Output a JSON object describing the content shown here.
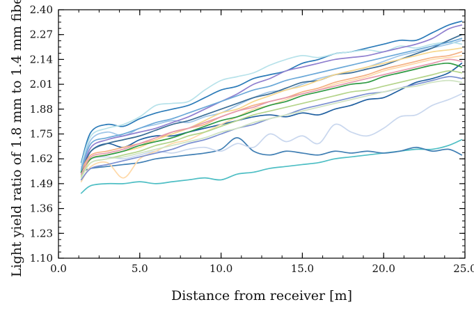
{
  "chart_data": {
    "type": "line",
    "title": "",
    "xlabel": "Distance from receiver [m]",
    "ylabel": "Light yield ratio of 1.8 mm to 1.4 mm fiber",
    "xlim": [
      0,
      25
    ],
    "ylim": [
      1.1,
      2.4
    ],
    "xticks": [
      "0.0",
      "5.0",
      "10.0",
      "15.0",
      "20.0",
      "25.0"
    ],
    "yticks": [
      "1.10",
      "1.23",
      "1.36",
      "1.49",
      "1.62",
      "1.75",
      "1.88",
      "2.01",
      "2.14",
      "2.27",
      "2.40"
    ],
    "grid": false,
    "legend": "none",
    "x": [
      1.4,
      2,
      3,
      4,
      5,
      6,
      7,
      8,
      9,
      10,
      11,
      12,
      13,
      14,
      15,
      16,
      17,
      18,
      19,
      20,
      21,
      22,
      23,
      24,
      24.8
    ],
    "series": [
      {
        "color": "#4dbec4",
        "values": [
          1.44,
          1.48,
          1.49,
          1.49,
          1.5,
          1.49,
          1.5,
          1.51,
          1.52,
          1.51,
          1.54,
          1.55,
          1.57,
          1.58,
          1.59,
          1.6,
          1.62,
          1.63,
          1.64,
          1.65,
          1.66,
          1.67,
          1.67,
          1.69,
          1.72
        ]
      },
      {
        "color": "#3f7eb3",
        "values": [
          1.55,
          1.57,
          1.58,
          1.59,
          1.6,
          1.62,
          1.63,
          1.64,
          1.65,
          1.67,
          1.73,
          1.66,
          1.64,
          1.66,
          1.65,
          1.64,
          1.66,
          1.65,
          1.66,
          1.65,
          1.66,
          1.68,
          1.66,
          1.67,
          1.64
        ]
      },
      {
        "color": "#c9d7ee",
        "values": [
          1.58,
          1.62,
          1.63,
          1.62,
          1.64,
          1.66,
          1.65,
          1.67,
          1.68,
          1.66,
          1.7,
          1.68,
          1.75,
          1.71,
          1.74,
          1.7,
          1.8,
          1.76,
          1.74,
          1.78,
          1.84,
          1.85,
          1.9,
          1.93,
          1.96
        ]
      },
      {
        "color": "#1f5fa0",
        "values": [
          1.55,
          1.66,
          1.7,
          1.68,
          1.72,
          1.74,
          1.74,
          1.76,
          1.78,
          1.8,
          1.82,
          1.84,
          1.85,
          1.84,
          1.86,
          1.85,
          1.88,
          1.9,
          1.93,
          1.94,
          1.98,
          2.02,
          2.04,
          2.07,
          2.12
        ]
      },
      {
        "color": "#9ec5e8",
        "values": [
          1.57,
          1.72,
          1.76,
          1.74,
          1.78,
          1.8,
          1.82,
          1.81,
          1.84,
          1.86,
          1.9,
          1.94,
          1.97,
          1.98,
          2.01,
          2.04,
          2.06,
          2.08,
          2.1,
          2.13,
          2.16,
          2.18,
          2.2,
          2.22,
          2.24
        ]
      },
      {
        "color": "#2a7ab8",
        "values": [
          1.6,
          1.76,
          1.8,
          1.79,
          1.83,
          1.86,
          1.88,
          1.9,
          1.94,
          1.98,
          2.0,
          2.04,
          2.06,
          2.08,
          2.12,
          2.14,
          2.17,
          2.18,
          2.2,
          2.22,
          2.24,
          2.24,
          2.28,
          2.32,
          2.34
        ]
      },
      {
        "color": "#b7e2ea",
        "values": [
          1.59,
          1.74,
          1.78,
          1.8,
          1.84,
          1.9,
          1.91,
          1.92,
          1.98,
          2.03,
          2.05,
          2.07,
          2.11,
          2.14,
          2.16,
          2.15,
          2.17,
          2.18,
          2.19,
          2.18,
          2.21,
          2.2,
          2.22,
          2.23,
          2.22
        ]
      },
      {
        "color": "#8f7fcf",
        "values": [
          1.54,
          1.68,
          1.72,
          1.74,
          1.76,
          1.78,
          1.81,
          1.84,
          1.88,
          1.92,
          1.96,
          2.01,
          2.04,
          2.08,
          2.1,
          2.12,
          2.14,
          2.15,
          2.16,
          2.18,
          2.2,
          2.22,
          2.25,
          2.3,
          2.32
        ]
      },
      {
        "color": "#3b6e96",
        "values": [
          1.55,
          1.66,
          1.7,
          1.72,
          1.74,
          1.77,
          1.8,
          1.82,
          1.85,
          1.88,
          1.91,
          1.94,
          1.96,
          1.99,
          2.02,
          2.03,
          2.06,
          2.07,
          2.09,
          2.11,
          2.14,
          2.17,
          2.2,
          2.24,
          2.27
        ]
      },
      {
        "color": "#f4b183",
        "values": [
          1.56,
          1.64,
          1.66,
          1.68,
          1.7,
          1.72,
          1.76,
          1.78,
          1.8,
          1.84,
          1.87,
          1.9,
          1.92,
          1.94,
          1.97,
          1.99,
          2.02,
          2.04,
          2.06,
          2.09,
          2.11,
          2.13,
          2.15,
          2.16,
          2.18
        ]
      },
      {
        "color": "#f6d68a",
        "values": [
          1.52,
          1.62,
          1.64,
          1.66,
          1.68,
          1.72,
          1.75,
          1.78,
          1.82,
          1.86,
          1.88,
          1.92,
          1.95,
          1.98,
          2.0,
          2.03,
          2.06,
          2.08,
          2.1,
          2.12,
          2.14,
          2.16,
          2.18,
          2.19,
          2.2
        ]
      },
      {
        "color": "#ffd9a8",
        "values": [
          1.5,
          1.58,
          1.6,
          1.52,
          1.62,
          1.66,
          1.7,
          1.72,
          1.76,
          1.8,
          1.84,
          1.88,
          1.9,
          1.93,
          1.96,
          1.98,
          2.01,
          2.03,
          2.05,
          2.08,
          2.1,
          2.12,
          2.14,
          2.15,
          2.16
        ]
      },
      {
        "color": "#2f9a44",
        "values": [
          1.55,
          1.62,
          1.64,
          1.66,
          1.69,
          1.71,
          1.73,
          1.76,
          1.79,
          1.82,
          1.84,
          1.87,
          1.9,
          1.92,
          1.95,
          1.97,
          1.99,
          2.01,
          2.02,
          2.05,
          2.07,
          2.09,
          2.11,
          2.12,
          2.1
        ]
      },
      {
        "color": "#b4d48a",
        "values": [
          1.53,
          1.6,
          1.62,
          1.64,
          1.66,
          1.69,
          1.71,
          1.74,
          1.76,
          1.79,
          1.82,
          1.85,
          1.87,
          1.89,
          1.91,
          1.93,
          1.95,
          1.97,
          1.98,
          2.0,
          2.02,
          2.04,
          2.06,
          2.08,
          2.07
        ]
      },
      {
        "color": "#7a8fd1",
        "values": [
          1.51,
          1.57,
          1.59,
          1.61,
          1.63,
          1.65,
          1.67,
          1.7,
          1.72,
          1.75,
          1.78,
          1.8,
          1.83,
          1.85,
          1.88,
          1.9,
          1.92,
          1.94,
          1.96,
          1.97,
          1.99,
          2.01,
          2.03,
          2.05,
          2.04
        ]
      },
      {
        "color": "#e59ab0",
        "values": [
          1.54,
          1.63,
          1.65,
          1.67,
          1.7,
          1.73,
          1.76,
          1.78,
          1.81,
          1.84,
          1.87,
          1.89,
          1.92,
          1.94,
          1.96,
          1.98,
          2.0,
          2.02,
          2.04,
          2.06,
          2.08,
          2.1,
          2.12,
          2.14,
          2.13
        ]
      },
      {
        "color": "#6aa8d8",
        "values": [
          1.56,
          1.7,
          1.73,
          1.75,
          1.78,
          1.81,
          1.83,
          1.86,
          1.89,
          1.92,
          1.95,
          1.98,
          2.0,
          2.03,
          2.05,
          2.07,
          2.09,
          2.11,
          2.13,
          2.15,
          2.17,
          2.19,
          2.21,
          2.23,
          2.25
        ]
      },
      {
        "color": "#cfe3c2",
        "values": [
          1.52,
          1.6,
          1.62,
          1.63,
          1.65,
          1.67,
          1.69,
          1.71,
          1.73,
          1.76,
          1.78,
          1.81,
          1.83,
          1.85,
          1.87,
          1.89,
          1.91,
          1.93,
          1.95,
          1.97,
          1.99,
          2.0,
          2.02,
          2.03,
          2.02
        ]
      }
    ]
  }
}
